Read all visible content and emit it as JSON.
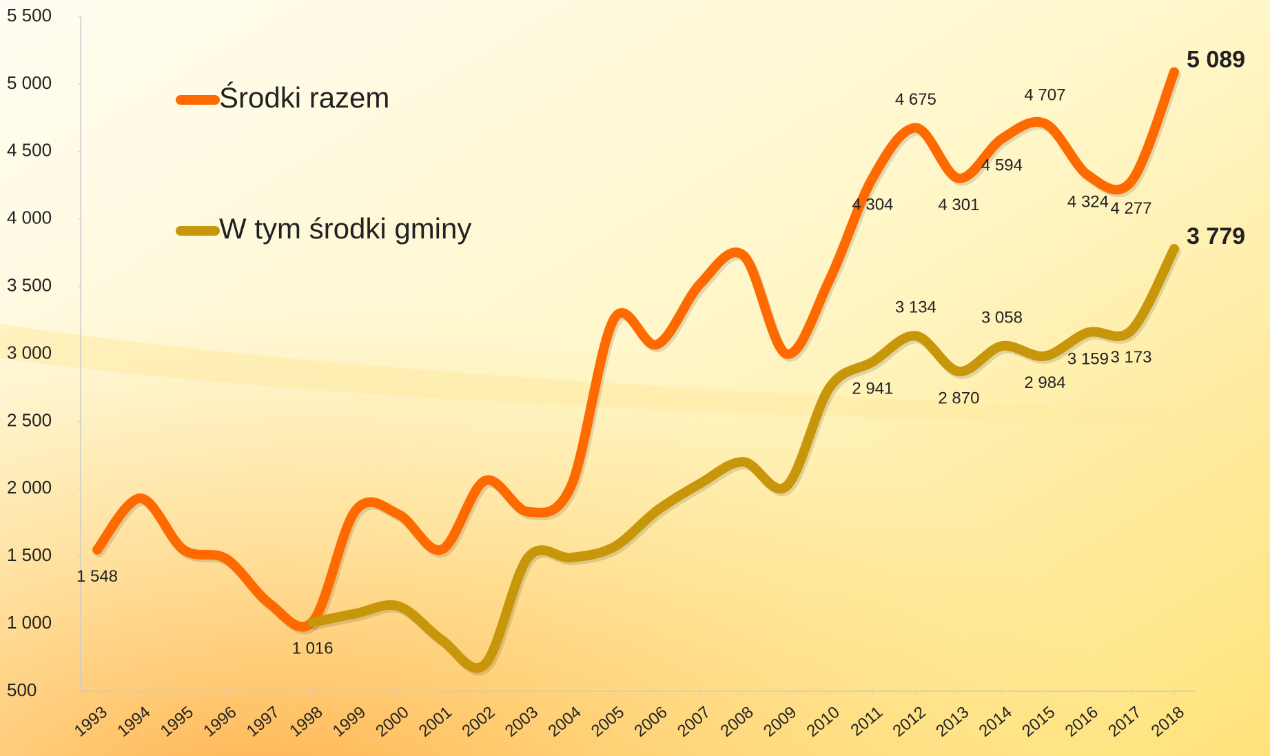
{
  "chart_data": {
    "type": "line",
    "categories": [
      "1993",
      "1994",
      "1995",
      "1996",
      "1997",
      "1998",
      "1999",
      "2000",
      "2001",
      "2002",
      "2003",
      "2004",
      "2005",
      "2006",
      "2007",
      "2008",
      "2009",
      "2010",
      "2011",
      "2012",
      "2013",
      "2014",
      "2015",
      "2016",
      "2017",
      "2018"
    ],
    "series": [
      {
        "name": "Środki razem",
        "color": "#ff6a00",
        "values": [
          1548,
          1930,
          1550,
          1480,
          1150,
          1016,
          1840,
          1810,
          1550,
          2060,
          1830,
          2020,
          3260,
          3070,
          3520,
          3730,
          3000,
          3550,
          4304,
          4675,
          4301,
          4594,
          4707,
          4324,
          4277,
          5089
        ],
        "value_labels": [
          "1 548",
          null,
          null,
          null,
          null,
          "1 016",
          null,
          null,
          null,
          null,
          null,
          null,
          null,
          null,
          null,
          null,
          null,
          null,
          "4 304",
          "4 675",
          "4 301",
          "4 594",
          "4 707",
          "4 324",
          "4 277",
          "5 089"
        ]
      },
      {
        "name": "W tym środki gminy",
        "color": "#c8960a",
        "values": [
          null,
          null,
          null,
          null,
          null,
          1010,
          1076,
          1130,
          880,
          700,
          1490,
          1490,
          1570,
          1840,
          2040,
          2200,
          2020,
          2750,
          2941,
          3134,
          2870,
          3058,
          2984,
          3159,
          3173,
          3779
        ],
        "value_labels": [
          null,
          null,
          null,
          null,
          null,
          null,
          null,
          null,
          null,
          null,
          null,
          null,
          null,
          null,
          null,
          null,
          null,
          null,
          "2 941",
          "3 134",
          "2 870",
          "3 058",
          "2 984",
          "3 159",
          "3 173",
          "3 779"
        ]
      }
    ],
    "ylim": [
      500,
      5500
    ],
    "yticks": [
      {
        "value": 500,
        "label": "500"
      },
      {
        "value": 1000,
        "label": "1 000"
      },
      {
        "value": 1500,
        "label": "1 500"
      },
      {
        "value": 2000,
        "label": "2 000"
      },
      {
        "value": 2500,
        "label": "2 500"
      },
      {
        "value": 3000,
        "label": "3 000"
      },
      {
        "value": 3500,
        "label": "3 500"
      },
      {
        "value": 4000,
        "label": "4 000"
      },
      {
        "value": 4500,
        "label": "4 500"
      },
      {
        "value": 5000,
        "label": "5 000"
      },
      {
        "value": 5500,
        "label": "5 500"
      }
    ],
    "legend": "top-left"
  }
}
